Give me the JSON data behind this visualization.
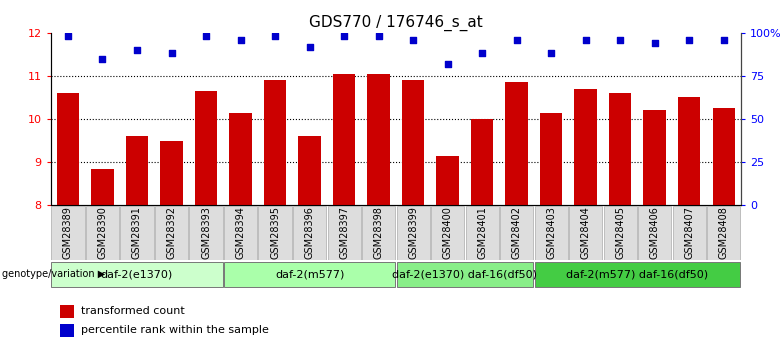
{
  "title": "GDS770 / 176746_s_at",
  "samples": [
    "GSM28389",
    "GSM28390",
    "GSM28391",
    "GSM28392",
    "GSM28393",
    "GSM28394",
    "GSM28395",
    "GSM28396",
    "GSM28397",
    "GSM28398",
    "GSM28399",
    "GSM28400",
    "GSM28401",
    "GSM28402",
    "GSM28403",
    "GSM28404",
    "GSM28405",
    "GSM28406",
    "GSM28407",
    "GSM28408"
  ],
  "bar_values": [
    10.6,
    8.85,
    9.6,
    9.5,
    10.65,
    10.15,
    10.9,
    9.6,
    11.05,
    11.05,
    10.9,
    9.15,
    10.0,
    10.85,
    10.15,
    10.7,
    10.6,
    10.2,
    10.5,
    10.25
  ],
  "dot_values": [
    98,
    85,
    90,
    88,
    98,
    96,
    98,
    92,
    98,
    98,
    96,
    82,
    88,
    96,
    88,
    96,
    96,
    94,
    96,
    96
  ],
  "bar_color": "#cc0000",
  "dot_color": "#0000cc",
  "ylim_left": [
    8,
    12
  ],
  "ylim_right": [
    0,
    100
  ],
  "yticks_left": [
    8,
    9,
    10,
    11,
    12
  ],
  "yticks_right": [
    0,
    25,
    50,
    75,
    100
  ],
  "ytick_labels_right": [
    "0",
    "25",
    "50",
    "75",
    "100%"
  ],
  "groups": [
    {
      "label": "daf-2(e1370)",
      "start": 0,
      "end": 4,
      "color": "#ccffcc"
    },
    {
      "label": "daf-2(m577)",
      "start": 5,
      "end": 9,
      "color": "#aaffaa"
    },
    {
      "label": "daf-2(e1370) daf-16(df50)",
      "start": 10,
      "end": 13,
      "color": "#88ee88"
    },
    {
      "label": "daf-2(m577) daf-16(df50)",
      "start": 14,
      "end": 19,
      "color": "#44cc44"
    }
  ],
  "genotype_label": "genotype/variation",
  "legend_bar_label": "transformed count",
  "legend_dot_label": "percentile rank within the sample",
  "xtick_bg": "#dddddd",
  "label_fontsize": 7,
  "group_fontsize": 8,
  "title_fontsize": 11
}
